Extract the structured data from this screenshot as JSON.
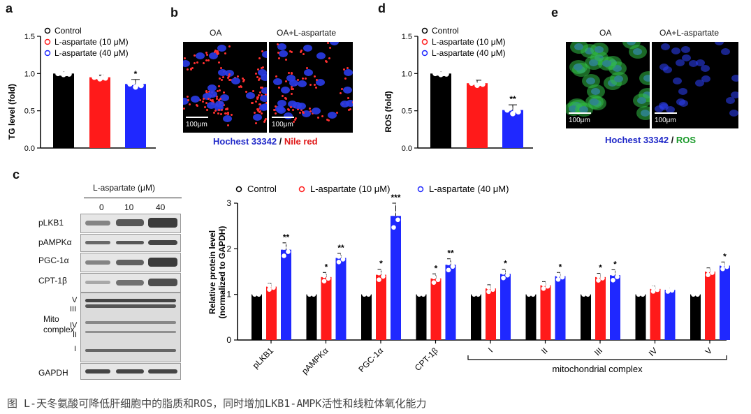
{
  "panels": {
    "a": "a",
    "b": "b",
    "c": "c",
    "d": "d",
    "e": "e"
  },
  "legend": {
    "control": "Control",
    "l10": "L-aspartate (10 μM)",
    "l40": "L-aspartate (40 μM)"
  },
  "colors": {
    "control": "#000000",
    "l10": "#ff1a1a",
    "l40": "#1f28ff"
  },
  "panel_b": {
    "col1": "OA",
    "col2": "OA+L-aspartate",
    "scale": "100μm",
    "stain_blue": "Hochest 33342",
    "stain_sep": " / ",
    "stain_red": "Nile red"
  },
  "panel_e": {
    "col1": "OA",
    "col2": "OA+L-aspartate",
    "scale": "100μm",
    "stain_blue": "Hochest 33342",
    "stain_sep": " / ",
    "stain_green": "ROS"
  },
  "panel_c_blot": {
    "treatment": "L-aspartate (μM)",
    "doses": [
      "0",
      "10",
      "40"
    ],
    "rows": [
      "pLKB1",
      "pAMPKα",
      "PGC-1α",
      "CPT-1β",
      "GAPDH"
    ],
    "mito_label": "Mito complex",
    "mito_complexes": [
      "V",
      "III",
      "IV",
      "II",
      "I"
    ]
  },
  "chart_data": [
    {
      "type": "bar",
      "panel": "a",
      "categories": [
        "Control",
        "L-aspartate (10 μM)",
        "L-aspartate (40 μM)"
      ],
      "values": [
        1.0,
        0.95,
        0.86
      ],
      "errors": [
        0.02,
        0.03,
        0.06
      ],
      "significance": [
        "",
        "",
        "*"
      ],
      "ylabel": "TG level (fold)",
      "ylim": [
        0,
        1.5
      ],
      "yticks": [
        "0.0",
        "0.5",
        "1.0",
        "1.5"
      ]
    },
    {
      "type": "bar",
      "panel": "d",
      "categories": [
        "Control",
        "L-aspartate (10 μM)",
        "L-aspartate (40 μM)"
      ],
      "values": [
        1.0,
        0.87,
        0.51
      ],
      "errors": [
        0.02,
        0.04,
        0.07
      ],
      "significance": [
        "",
        "",
        "**"
      ],
      "ylabel": "ROS (fold)",
      "ylim": [
        0,
        1.5
      ],
      "yticks": [
        "0.0",
        "0.5",
        "1.0",
        "1.5"
      ]
    },
    {
      "type": "bar",
      "panel": "c",
      "categories": [
        "pLKB1",
        "pAMPKα",
        "PGC-1α",
        "CPT-1β",
        "I",
        "II",
        "III",
        "IV",
        "V"
      ],
      "series": [
        {
          "name": "Control",
          "values": [
            1,
            1,
            1,
            1,
            1,
            1,
            1,
            1,
            1
          ],
          "errors": [
            0,
            0,
            0,
            0,
            0,
            0,
            0,
            0,
            0
          ],
          "significance": [
            "",
            "",
            "",
            "",
            "",
            "",
            "",
            "",
            ""
          ]
        },
        {
          "name": "L-aspartate (10 μM)",
          "values": [
            1.17,
            1.38,
            1.43,
            1.35,
            1.13,
            1.2,
            1.38,
            1.12,
            1.5
          ],
          "errors": [
            0.07,
            0.1,
            0.12,
            0.1,
            0.08,
            0.08,
            0.08,
            0.06,
            0.08
          ],
          "significance": [
            "",
            "*",
            "*",
            "*",
            "",
            "",
            "*",
            "",
            ""
          ]
        },
        {
          "name": "L-aspartate (40 μM)",
          "values": [
            1.98,
            1.8,
            2.72,
            1.65,
            1.45,
            1.4,
            1.42,
            1.1,
            1.63
          ],
          "errors": [
            0.15,
            0.1,
            0.28,
            0.13,
            0.1,
            0.08,
            0.12,
            0.04,
            0.08
          ],
          "significance": [
            "**",
            "**",
            "***",
            "**",
            "*",
            "*",
            "*",
            "",
            "*"
          ]
        }
      ],
      "ylabel": "Relative protein level",
      "ylabel2": "(normalized to GAPDH)",
      "ylim": [
        0,
        3
      ],
      "yticks": [
        "0",
        "1",
        "2",
        "3"
      ],
      "bracket_label": "mitochondrial complex"
    }
  ],
  "caption": "图 L-天冬氨酸可降低肝细胞中的脂质和ROS，同时增加LKB1-AMPK活性和线粒体氧化能力"
}
